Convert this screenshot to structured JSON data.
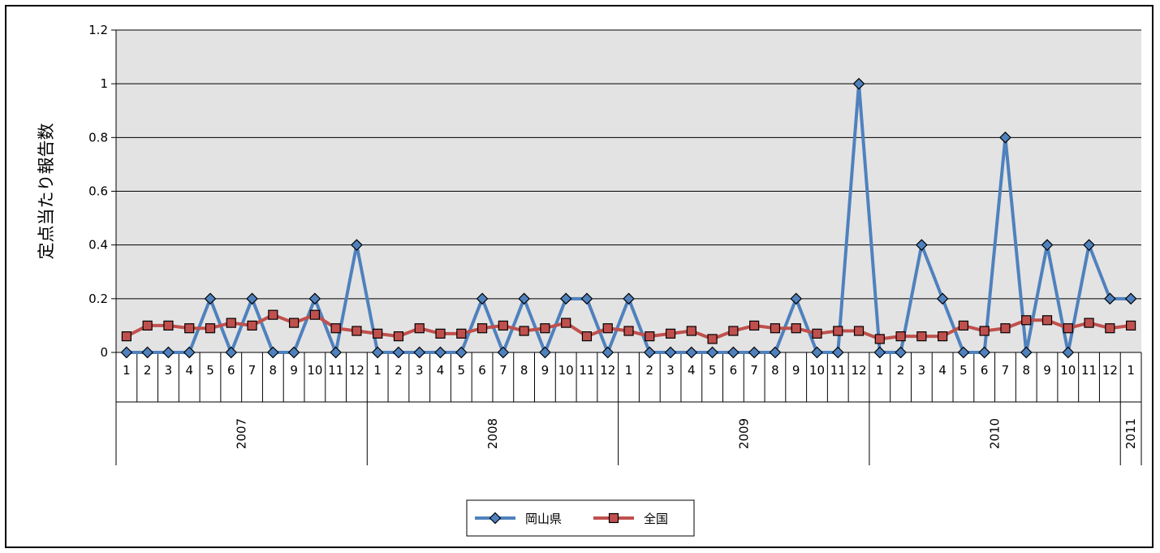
{
  "chart_data": {
    "type": "line",
    "title": "",
    "xlabel": "",
    "ylabel": "定点当たり報告数",
    "ylim": [
      0,
      1.2
    ],
    "yticks": [
      "0",
      "0.2",
      "0.4",
      "0.6",
      "0.8",
      "1",
      "1.2"
    ],
    "grid": true,
    "legend_position": "bottom",
    "months": [
      "1",
      "2",
      "3",
      "4",
      "5",
      "6",
      "7",
      "8",
      "9",
      "10",
      "11",
      "12",
      "1",
      "2",
      "3",
      "4",
      "5",
      "6",
      "7",
      "8",
      "9",
      "10",
      "11",
      "12",
      "1",
      "2",
      "3",
      "4",
      "5",
      "6",
      "7",
      "8",
      "9",
      "10",
      "11",
      "12",
      "1",
      "2",
      "3",
      "4",
      "5",
      "6",
      "7",
      "8",
      "9",
      "10",
      "11",
      "12",
      "1"
    ],
    "years": [
      {
        "label": "2007",
        "count": 12
      },
      {
        "label": "2008",
        "count": 12
      },
      {
        "label": "2009",
        "count": 12
      },
      {
        "label": "2010",
        "count": 12
      },
      {
        "label": "2011",
        "count": 1
      }
    ],
    "series": [
      {
        "name": "岡山県",
        "color": "#4f81bd",
        "marker": "diamond",
        "values": [
          0,
          0,
          0,
          0,
          0.2,
          0,
          0.2,
          0,
          0,
          0.2,
          0,
          0.4,
          0,
          0,
          0,
          0,
          0,
          0.2,
          0,
          0.2,
          0,
          0.2,
          0.2,
          0,
          0.2,
          0,
          0,
          0,
          0,
          0,
          0,
          0,
          0.2,
          0,
          0,
          1.0,
          0,
          0,
          0.4,
          0.2,
          0,
          0,
          0.8,
          0,
          0.4,
          0,
          0.4,
          0.2,
          0.2
        ]
      },
      {
        "name": "全国",
        "color": "#c0504d",
        "marker": "square",
        "values": [
          0.06,
          0.1,
          0.1,
          0.09,
          0.09,
          0.11,
          0.1,
          0.14,
          0.11,
          0.14,
          0.09,
          0.08,
          0.07,
          0.06,
          0.09,
          0.07,
          0.07,
          0.09,
          0.1,
          0.08,
          0.09,
          0.11,
          0.06,
          0.09,
          0.08,
          0.06,
          0.07,
          0.08,
          0.05,
          0.08,
          0.1,
          0.09,
          0.09,
          0.07,
          0.08,
          0.08,
          0.05,
          0.06,
          0.06,
          0.06,
          0.1,
          0.08,
          0.09,
          0.12,
          0.12,
          0.09,
          0.11,
          0.09,
          0.1
        ]
      }
    ]
  },
  "colors": {
    "plot_background": "#e3e3e3",
    "gridline": "#000000"
  }
}
